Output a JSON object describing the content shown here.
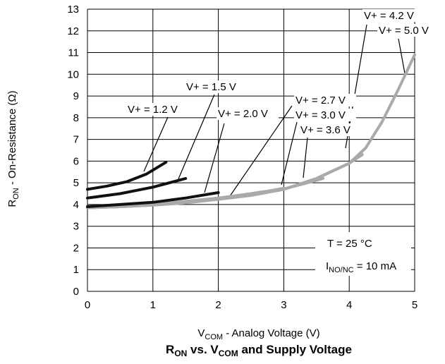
{
  "chart_data": {
    "type": "line",
    "title": {
      "main": "R",
      "sub1": "ON",
      "mid": " vs. V",
      "sub2": "COM",
      "tail": " and Supply Voltage"
    },
    "xlabel": {
      "main": "V",
      "sub": "COM",
      "tail": " - Analog Voltage (V)"
    },
    "ylabel": {
      "main": "R",
      "sub": "ON",
      "tail": " - On-Resistance (Ω)"
    },
    "xlim": [
      0,
      5
    ],
    "ylim": [
      0,
      13
    ],
    "xticks": [
      "0",
      "1",
      "2",
      "3",
      "4",
      "5"
    ],
    "yticks": [
      "0",
      "1",
      "2",
      "3",
      "4",
      "5",
      "6",
      "7",
      "8",
      "9",
      "10",
      "11",
      "12",
      "13"
    ],
    "grid": true,
    "series": [
      {
        "name": "V+ = 1.2 V",
        "color": "#111111",
        "x": [
          0,
          0.3,
          0.6,
          0.9,
          1.2
        ],
        "y": [
          4.7,
          4.85,
          5.05,
          5.4,
          5.95
        ]
      },
      {
        "name": "V+ = 1.5 V",
        "color": "#111111",
        "x": [
          0,
          0.5,
          1.0,
          1.5
        ],
        "y": [
          4.3,
          4.5,
          4.8,
          5.2
        ]
      },
      {
        "name": "V+ = 2.0 V",
        "color": "#111111",
        "x": [
          0,
          0.5,
          1.0,
          1.5,
          2.0
        ],
        "y": [
          3.9,
          4.0,
          4.1,
          4.3,
          4.55
        ]
      },
      {
        "name": "V+ = 2.7 V",
        "color": "#aaaaaa",
        "x": [
          0,
          0.5,
          1.0,
          1.5,
          2.0,
          2.5,
          2.7
        ],
        "y": [
          3.85,
          3.9,
          4.0,
          4.15,
          4.3,
          4.5,
          4.6
        ]
      },
      {
        "name": "V+ = 3.0 V",
        "color": "#aaaaaa",
        "x": [
          0,
          0.5,
          1.0,
          1.5,
          2.0,
          2.5,
          3.0
        ],
        "y": [
          3.85,
          3.9,
          3.98,
          4.12,
          4.28,
          4.48,
          4.75
        ]
      },
      {
        "name": "V+ = 3.6 V",
        "color": "#aaaaaa",
        "x": [
          0,
          0.5,
          1.0,
          1.5,
          2.0,
          2.5,
          3.0,
          3.3,
          3.6
        ],
        "y": [
          3.85,
          3.9,
          3.98,
          4.1,
          4.26,
          4.45,
          4.72,
          4.95,
          5.2
        ]
      },
      {
        "name": "V+ = 4.2 V",
        "color": "#aaaaaa",
        "x": [
          0,
          0.5,
          1.0,
          1.5,
          2.0,
          2.5,
          3.0,
          3.5,
          4.0,
          4.2
        ],
        "y": [
          3.85,
          3.9,
          3.97,
          4.08,
          4.24,
          4.43,
          4.7,
          5.2,
          5.9,
          6.3
        ]
      },
      {
        "name": "V+ = 5.0 V",
        "color": "#aaaaaa",
        "x": [
          0,
          0.5,
          1.0,
          1.5,
          2.0,
          2.5,
          3.0,
          3.5,
          4.0,
          4.25,
          4.5,
          4.75,
          5.0
        ],
        "y": [
          3.85,
          3.9,
          3.97,
          4.08,
          4.24,
          4.42,
          4.7,
          5.2,
          5.9,
          6.6,
          7.8,
          9.3,
          10.9
        ]
      }
    ],
    "annotations": {
      "temp": "T = 25 °C",
      "current_main": "I",
      "current_sub": "NO/NC",
      "current_tail": " = 10 mA"
    }
  }
}
